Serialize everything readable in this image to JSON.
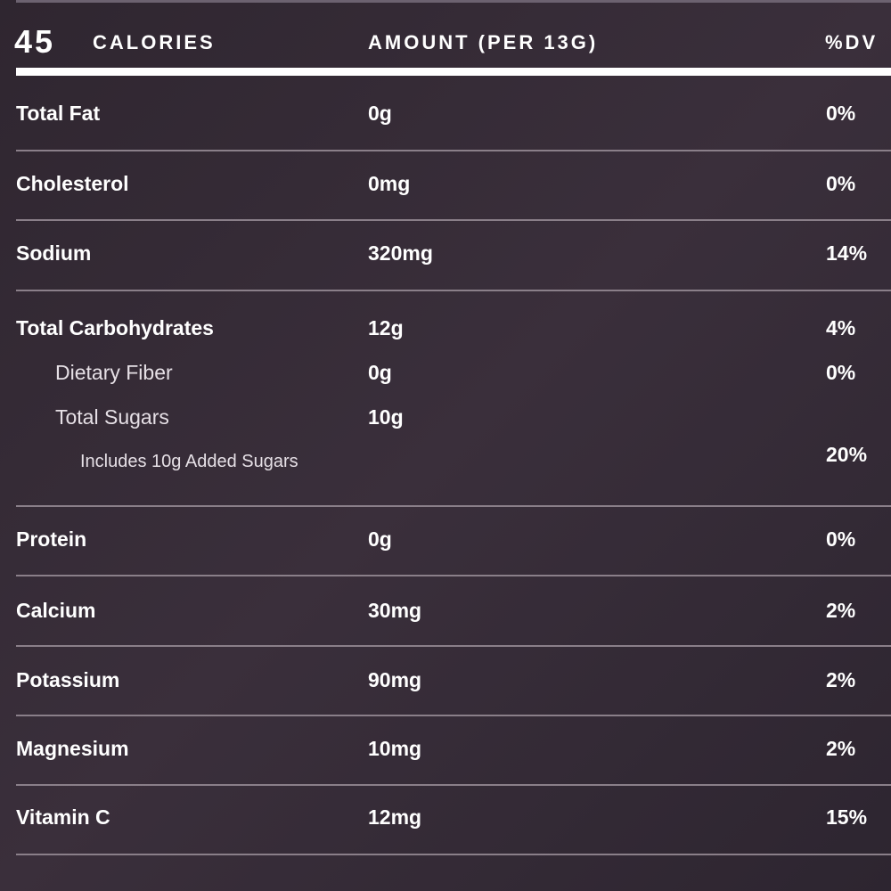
{
  "header": {
    "calories": "45",
    "calories_label": "CALORIES",
    "amount_header": "AMOUNT (PER 13G)",
    "dv_header": "%DV"
  },
  "rows": [
    {
      "name": "Total Fat",
      "amount": "0g",
      "dv": "0%"
    },
    {
      "name": "Cholesterol",
      "amount": "0mg",
      "dv": "0%"
    },
    {
      "name": "Sodium",
      "amount": "320mg",
      "dv": "14%"
    },
    {
      "name": "Total Carbohydrates",
      "amount": "12g",
      "dv": "4%"
    },
    {
      "name": "Dietary Fiber",
      "amount": "0g",
      "dv": "0%"
    },
    {
      "name": "Total Sugars",
      "amount": "10g"
    },
    {
      "name": "Includes 10g Added Sugars",
      "dv": "20%"
    },
    {
      "name": "Protein",
      "amount": "0g",
      "dv": "0%"
    },
    {
      "name": "Calcium",
      "amount": "30mg",
      "dv": "2%"
    },
    {
      "name": "Potassium",
      "amount": "90mg",
      "dv": "2%"
    },
    {
      "name": "Magnesium",
      "amount": "10mg",
      "dv": "2%"
    },
    {
      "name": "Vitamin C",
      "amount": "12mg",
      "dv": "15%"
    }
  ]
}
